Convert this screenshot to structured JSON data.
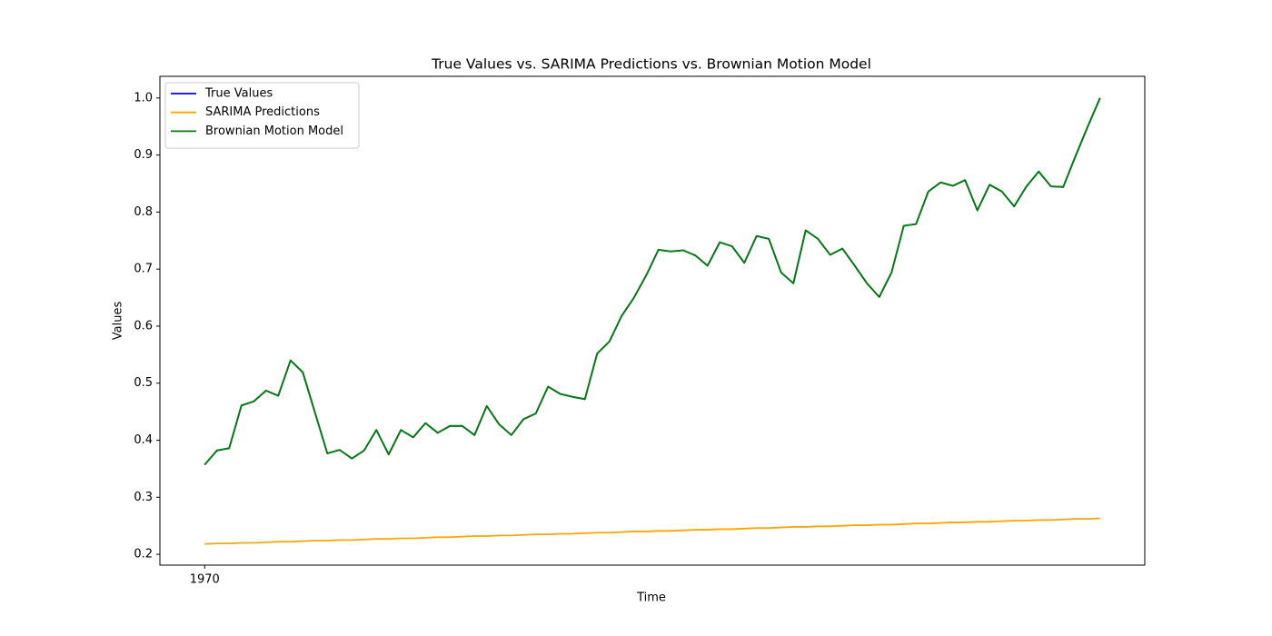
{
  "chart_data": {
    "type": "line",
    "title": "True Values vs. SARIMA Predictions vs. Brownian Motion Model",
    "x_label": "Time",
    "y_label": "Values",
    "x": [
      0,
      1,
      2,
      3,
      4,
      5,
      6,
      7,
      8,
      9,
      10,
      11,
      12,
      13,
      14,
      15,
      16,
      17,
      18,
      19,
      20,
      21,
      22,
      23,
      24,
      25,
      26,
      27,
      28,
      29,
      30,
      31,
      32,
      33,
      34,
      35,
      36,
      37,
      38,
      39,
      40,
      41,
      42,
      43,
      44,
      45,
      46,
      47,
      48,
      49,
      50,
      51,
      52,
      53,
      54,
      55,
      56,
      57,
      58,
      59,
      60,
      61,
      62,
      63,
      64,
      65,
      66,
      67,
      68,
      69,
      70,
      71,
      72,
      73
    ],
    "xlim": [
      -3.65,
      76.65
    ],
    "xticks": [
      {
        "value": 0,
        "label": "1970"
      }
    ],
    "ylim": [
      0.181,
      1.038
    ],
    "yticks": [
      0.2,
      0.3,
      0.4,
      0.5,
      0.6,
      0.7,
      0.8,
      0.9,
      {
        "value": 1,
        "label": "1.0"
      }
    ],
    "legend": "upper left",
    "series": [
      {
        "name": "True Values",
        "color": "#0000ff",
        "values": [
          0.357,
          0.382,
          0.386,
          0.461,
          0.468,
          0.487,
          0.478,
          0.54,
          0.519,
          0.448,
          0.377,
          0.383,
          0.368,
          0.382,
          0.418,
          0.375,
          0.418,
          0.405,
          0.43,
          0.413,
          0.425,
          0.425,
          0.409,
          0.46,
          0.428,
          0.409,
          0.437,
          0.447,
          0.494,
          0.481,
          0.476,
          0.472,
          0.552,
          0.573,
          0.618,
          0.65,
          0.689,
          0.734,
          0.731,
          0.733,
          0.724,
          0.706,
          0.747,
          0.74,
          0.711,
          0.758,
          0.753,
          0.694,
          0.675,
          0.768,
          0.753,
          0.725,
          0.736,
          0.706,
          0.675,
          0.651,
          0.694,
          0.776,
          0.779,
          0.836,
          0.852,
          0.846,
          0.856,
          0.803,
          0.848,
          0.836,
          0.81,
          0.845,
          0.871,
          0.845,
          0.844,
          0.898,
          0.95,
          1.0
        ]
      },
      {
        "name": "SARIMA Predictions",
        "color": "#ffa500",
        "values": [
          0.218,
          0.219,
          0.219,
          0.22,
          0.22,
          0.221,
          0.222,
          0.222,
          0.223,
          0.224,
          0.224,
          0.225,
          0.225,
          0.226,
          0.227,
          0.227,
          0.228,
          0.228,
          0.229,
          0.23,
          0.23,
          0.231,
          0.232,
          0.232,
          0.233,
          0.233,
          0.234,
          0.235,
          0.235,
          0.236,
          0.236,
          0.237,
          0.238,
          0.238,
          0.239,
          0.24,
          0.24,
          0.241,
          0.241,
          0.242,
          0.243,
          0.243,
          0.244,
          0.244,
          0.245,
          0.246,
          0.246,
          0.247,
          0.248,
          0.248,
          0.249,
          0.249,
          0.25,
          0.251,
          0.251,
          0.252,
          0.252,
          0.253,
          0.254,
          0.254,
          0.255,
          0.256,
          0.256,
          0.257,
          0.257,
          0.258,
          0.259,
          0.259,
          0.26,
          0.26,
          0.261,
          0.262,
          0.262,
          0.263
        ]
      },
      {
        "name": "Brownian Motion Model",
        "color": "#008000",
        "values": [
          0.357,
          0.382,
          0.386,
          0.461,
          0.468,
          0.487,
          0.478,
          0.54,
          0.519,
          0.448,
          0.377,
          0.383,
          0.368,
          0.382,
          0.418,
          0.375,
          0.418,
          0.405,
          0.43,
          0.413,
          0.425,
          0.425,
          0.409,
          0.46,
          0.428,
          0.409,
          0.437,
          0.447,
          0.494,
          0.481,
          0.476,
          0.472,
          0.552,
          0.573,
          0.618,
          0.65,
          0.689,
          0.734,
          0.731,
          0.733,
          0.724,
          0.706,
          0.747,
          0.74,
          0.711,
          0.758,
          0.753,
          0.694,
          0.675,
          0.768,
          0.753,
          0.725,
          0.736,
          0.706,
          0.675,
          0.651,
          0.694,
          0.776,
          0.779,
          0.836,
          0.852,
          0.846,
          0.856,
          0.803,
          0.848,
          0.836,
          0.81,
          0.845,
          0.871,
          0.845,
          0.844,
          0.898,
          0.95,
          1.0
        ]
      }
    ]
  }
}
